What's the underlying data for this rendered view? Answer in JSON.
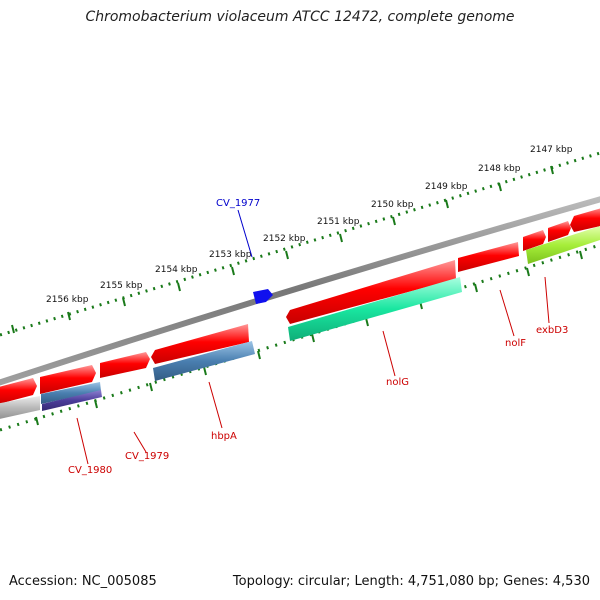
{
  "title": "Chromobacterium violaceum ATCC 12472, complete genome",
  "footer": {
    "accession": "Accession: NC_005085",
    "summary": "Topology: circular; Length: 4,751,080 bp; Genes: 4,530"
  },
  "scale": {
    "unit": "kbp",
    "ticks": [
      "2147 kbp",
      "2148 kbp",
      "2149 kbp",
      "2150 kbp",
      "2151 kbp",
      "2152 kbp",
      "2153 kbp",
      "2154 kbp",
      "2155 kbp",
      "2156 kbp"
    ]
  },
  "colors": {
    "backbone": "#808080",
    "ruler": "#1a7a1a",
    "forward_gene": "#ff0000",
    "label_red": "#cc0000",
    "label_blue": "#0000cc",
    "steel_blue": "#4a7fb0",
    "teal": "#19e6a0",
    "lime": "#a6ee3a",
    "purple": "#4b3d9a",
    "grey": "#b0b0b0",
    "blue": "#1010ee"
  },
  "gene_labels": {
    "cv1977": "CV_1977",
    "cv1979": "CV_1979",
    "cv1980": "CV_1980",
    "hbpA": "hbpA",
    "nolG": "nolG",
    "nolF": "nolF",
    "exbD3": "exbD3"
  }
}
